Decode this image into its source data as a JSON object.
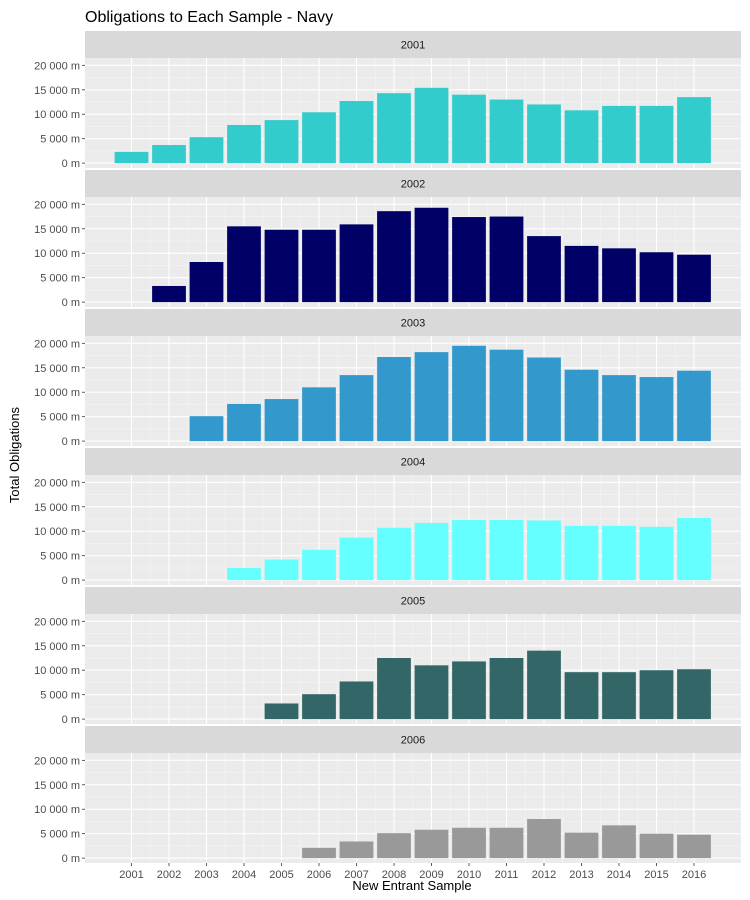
{
  "chart_data": {
    "type": "bar",
    "title": "Obligations to Each Sample - Navy",
    "xlabel": "New Entrant Sample",
    "ylabel": "Total Obligations",
    "categories": [
      "2001",
      "2002",
      "2003",
      "2004",
      "2005",
      "2006",
      "2007",
      "2008",
      "2009",
      "2010",
      "2011",
      "2012",
      "2013",
      "2014",
      "2015",
      "2016"
    ],
    "ylim": [
      -1000,
      21500
    ],
    "yticks": [
      0,
      5000,
      10000,
      15000,
      20000
    ],
    "ytick_labels": [
      "0 m",
      "5 000 m",
      "10 000 m",
      "15 000 m",
      "20 000 m"
    ],
    "grid": true,
    "legend": "none",
    "facets": [
      {
        "label": "2001",
        "color": "#33CCCC",
        "values": [
          2300,
          3700,
          5300,
          7800,
          8800,
          10400,
          12700,
          14300,
          15400,
          14000,
          13000,
          12000,
          10800,
          11700,
          11700,
          13500
        ]
      },
      {
        "label": "2002",
        "color": "#000066",
        "values": [
          null,
          3300,
          8200,
          15500,
          14800,
          14800,
          15900,
          18600,
          19300,
          17400,
          17500,
          13500,
          11500,
          11000,
          10200,
          9700
        ]
      },
      {
        "label": "2003",
        "color": "#3399CC",
        "values": [
          null,
          null,
          5100,
          7600,
          8600,
          11000,
          13500,
          17200,
          18200,
          19500,
          18700,
          17100,
          14600,
          13500,
          13100,
          14400
        ]
      },
      {
        "label": "2004",
        "color": "#66FFFF",
        "values": [
          null,
          null,
          null,
          2500,
          4200,
          6200,
          8700,
          10700,
          11700,
          12300,
          12300,
          12200,
          11100,
          11100,
          10900,
          12700
        ]
      },
      {
        "label": "2005",
        "color": "#336666",
        "values": [
          null,
          null,
          null,
          null,
          3200,
          5100,
          7700,
          12500,
          11000,
          11800,
          12500,
          14000,
          9600,
          9600,
          10000,
          10200
        ]
      },
      {
        "label": "2006",
        "color": "#999999",
        "values": [
          null,
          null,
          null,
          null,
          null,
          2100,
          3400,
          5100,
          5800,
          6200,
          6200,
          8000,
          5200,
          6700,
          5000,
          4800
        ]
      }
    ]
  }
}
